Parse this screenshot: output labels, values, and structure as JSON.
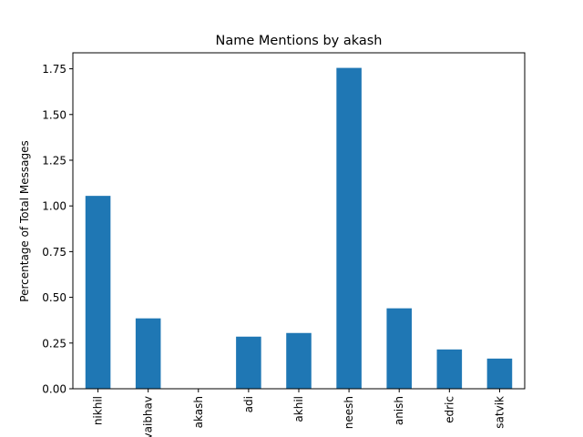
{
  "chart_data": {
    "type": "bar",
    "title": "Name Mentions by akash",
    "xlabel": "",
    "ylabel": "Percentage of Total Messages",
    "categories": [
      "nikhil",
      "vaibhav",
      "akash",
      "adi",
      "akhil",
      "neesh",
      "anish",
      "edric",
      "satvik"
    ],
    "values": [
      1.055,
      0.385,
      0.0,
      0.285,
      0.305,
      1.755,
      0.44,
      0.215,
      0.165
    ],
    "ylim": [
      0,
      1.8375
    ],
    "yticks": [
      "0.00",
      "0.25",
      "0.50",
      "0.75",
      "1.00",
      "1.25",
      "1.50",
      "1.75"
    ],
    "bar_color": "#1f77b4",
    "grid": false,
    "legend": "none"
  }
}
